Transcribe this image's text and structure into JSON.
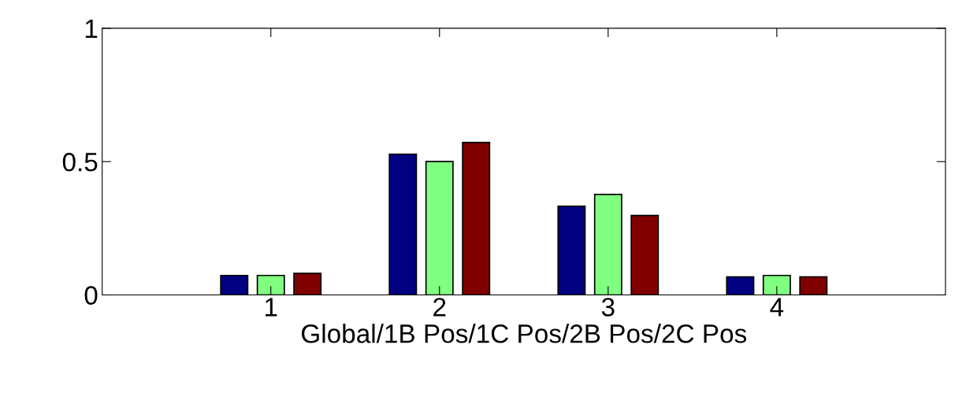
{
  "chart_data": {
    "type": "bar",
    "xlabel": "Global/1B Pos/1C Pos/2B Pos/2C Pos",
    "x": [
      1,
      2,
      3,
      4
    ],
    "xlim": [
      0,
      5
    ],
    "xticks": [
      1,
      2,
      3,
      4
    ],
    "ylim": [
      0,
      1
    ],
    "yticks": [
      0,
      0.5,
      1
    ],
    "grid": false,
    "legend": false,
    "series": [
      {
        "color": "#000080",
        "values": [
          0.073,
          0.528,
          0.333,
          0.068
        ]
      },
      {
        "color": "#80ff80",
        "values": [
          0.073,
          0.5,
          0.377,
          0.073
        ]
      },
      {
        "color": "#800000",
        "values": [
          0.081,
          0.572,
          0.298,
          0.068
        ]
      }
    ]
  }
}
